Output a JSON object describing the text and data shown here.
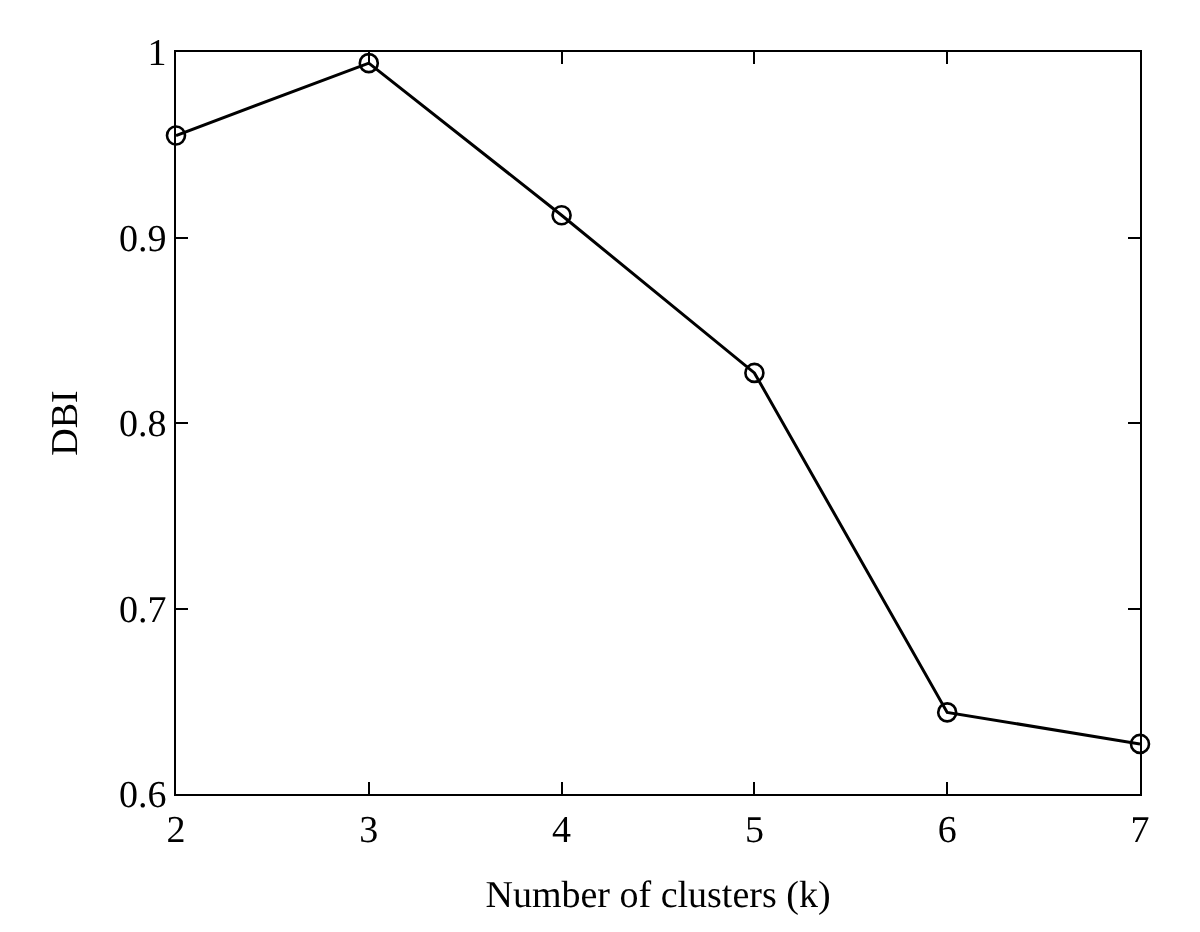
{
  "chart_data": {
    "type": "line",
    "xlabel": "Number of clusters (k)",
    "ylabel": "DBI",
    "x": [
      2,
      3,
      4,
      5,
      6,
      7
    ],
    "series": [
      {
        "color": "#000000",
        "values": [
          0.955,
          0.994,
          0.912,
          0.827,
          0.644,
          0.627
        ]
      }
    ],
    "xlim": [
      2,
      7
    ],
    "xticks": [
      2,
      3,
      4,
      5,
      6,
      7
    ],
    "ylim": [
      0.6,
      1
    ],
    "yticks": [
      0.6,
      0.7,
      0.8,
      0.9,
      1
    ],
    "marker": "circle",
    "line_style": "solid"
  }
}
